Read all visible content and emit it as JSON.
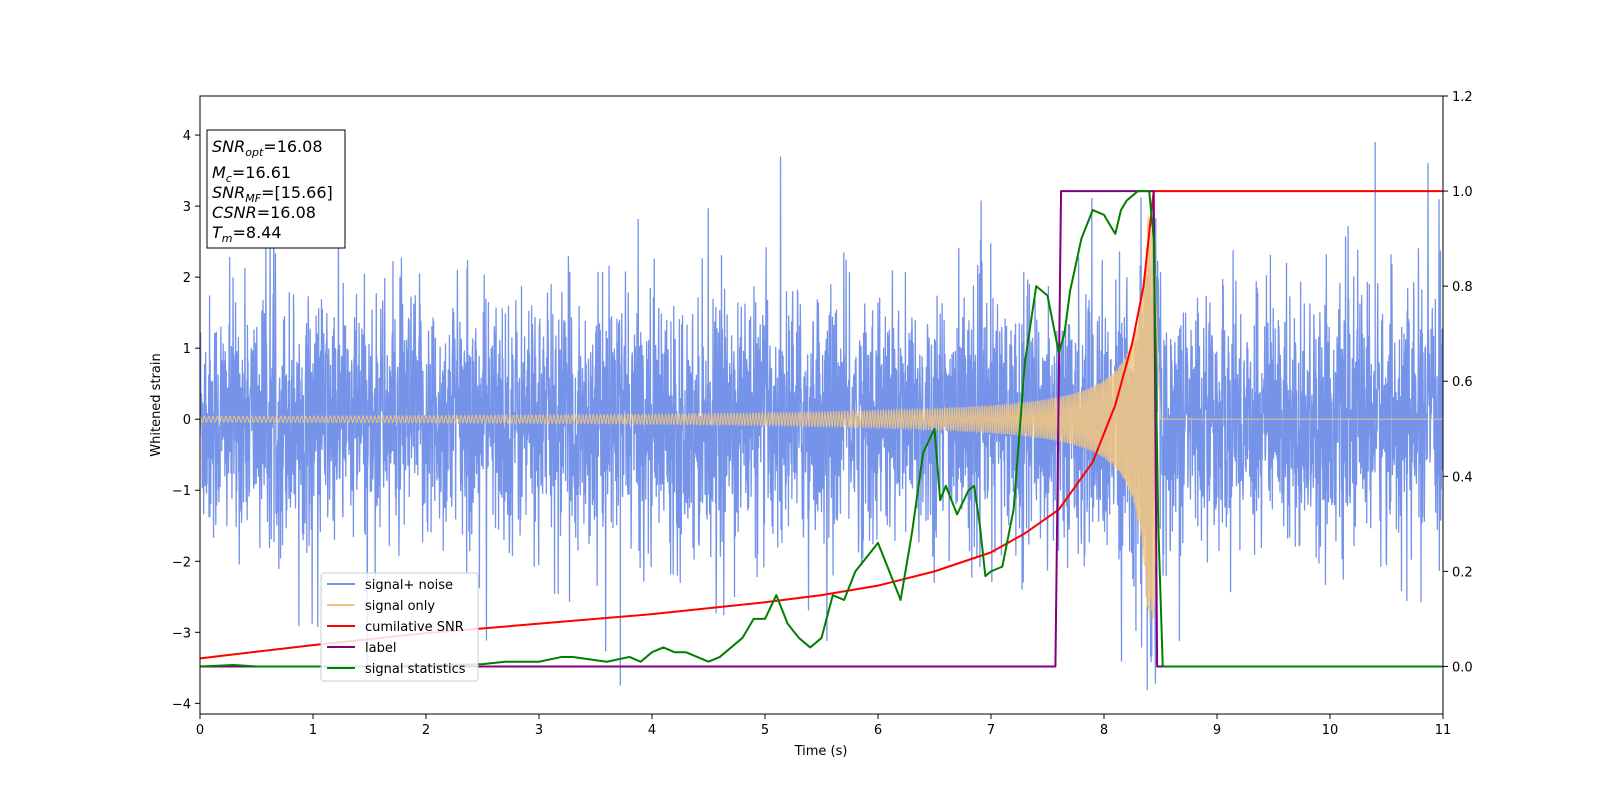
{
  "chart_data": {
    "type": "line",
    "xlabel": "Time (s)",
    "ylabel": "Whitened strain",
    "xlim": [
      0,
      11
    ],
    "ylim_left": [
      -4.15,
      4.55
    ],
    "ylim_right": [
      -0.1,
      1.2
    ],
    "x_ticks": [
      0,
      1,
      2,
      3,
      4,
      5,
      6,
      7,
      8,
      9,
      10,
      11
    ],
    "y_ticks_left": [
      -4,
      -3,
      -2,
      -1,
      0,
      1,
      2,
      3,
      4
    ],
    "y_ticks_right": [
      0.0,
      0.2,
      0.4,
      0.6,
      0.8,
      1.0,
      1.2
    ],
    "x_tick_labels": [
      "0",
      "1",
      "2",
      "3",
      "4",
      "5",
      "6",
      "7",
      "8",
      "9",
      "10",
      "11"
    ],
    "y_tick_labels_left": [
      "−4",
      "−3",
      "−2",
      "−1",
      "0",
      "1",
      "2",
      "3",
      "4"
    ],
    "y_tick_labels_right": [
      "0.0",
      "0.2",
      "0.4",
      "0.6",
      "0.8",
      "1.0",
      "1.2"
    ],
    "legend_position": "lower-left",
    "grid": false,
    "annotation": {
      "snr_opt": {
        "symbol": "SNR",
        "sub": "opt",
        "value": "=16.08"
      },
      "mc": {
        "symbol": "M",
        "sub": "c",
        "value": "=16.61"
      },
      "snr_mf": {
        "symbol": "SNR",
        "sub": "MF",
        "value": "=[15.66]"
      },
      "csnr": {
        "symbol": "CSNR",
        "value": "=16.08"
      },
      "tm": {
        "symbol": "T",
        "sub": "m",
        "value": "=8.44"
      }
    },
    "series": [
      {
        "name": "signal+ noise",
        "axis": "left",
        "color": "#7593e8",
        "description_noise_std": 0.85,
        "amplitude_peaks": [
          3.9,
          -3.75
        ]
      },
      {
        "name": "signal only",
        "axis": "left",
        "color": "#f5c77e",
        "chirp": {
          "t_merge": 8.44,
          "peak_amplitude": 2.9,
          "end": 8.5
        }
      },
      {
        "name": "cumilative SNR",
        "axis": "right",
        "color": "#ff0000",
        "x": [
          0,
          1,
          2,
          3,
          4,
          5,
          5.5,
          6,
          6.5,
          7,
          7.3,
          7.6,
          7.9,
          8.1,
          8.25,
          8.35,
          8.44,
          8.5,
          11
        ],
        "y": [
          0.017,
          0.045,
          0.07,
          0.09,
          0.11,
          0.135,
          0.15,
          0.17,
          0.2,
          0.24,
          0.28,
          0.33,
          0.43,
          0.55,
          0.68,
          0.8,
          1.0,
          1.0,
          1.0
        ]
      },
      {
        "name": "label",
        "axis": "right",
        "color": "#800080",
        "x": [
          0,
          7.57,
          7.62,
          8.44,
          8.47,
          11
        ],
        "y": [
          0.0,
          0.0,
          1.0,
          1.0,
          0.0,
          0.0
        ]
      },
      {
        "name": "signal statistics",
        "axis": "right",
        "color": "#007f00",
        "x": [
          0,
          0.3,
          0.5,
          1.0,
          1.5,
          2.0,
          2.5,
          2.7,
          3.0,
          3.2,
          3.3,
          3.6,
          3.8,
          3.9,
          4.0,
          4.1,
          4.2,
          4.3,
          4.5,
          4.6,
          4.7,
          4.8,
          4.9,
          5.0,
          5.1,
          5.2,
          5.3,
          5.4,
          5.5,
          5.6,
          5.7,
          5.8,
          5.9,
          6.0,
          6.1,
          6.2,
          6.3,
          6.4,
          6.5,
          6.55,
          6.6,
          6.7,
          6.8,
          6.85,
          6.9,
          6.95,
          7.0,
          7.1,
          7.2,
          7.3,
          7.4,
          7.5,
          7.6,
          7.65,
          7.7,
          7.8,
          7.9,
          8.0,
          8.1,
          8.15,
          8.2,
          8.3,
          8.4,
          8.44,
          8.48,
          8.52,
          11
        ],
        "y": [
          0.0,
          0.003,
          0.0,
          0.0,
          0.0,
          0.002,
          0.005,
          0.01,
          0.01,
          0.02,
          0.02,
          0.01,
          0.02,
          0.01,
          0.03,
          0.04,
          0.03,
          0.03,
          0.01,
          0.02,
          0.04,
          0.06,
          0.1,
          0.1,
          0.15,
          0.09,
          0.06,
          0.04,
          0.06,
          0.15,
          0.14,
          0.2,
          0.23,
          0.26,
          0.2,
          0.14,
          0.28,
          0.45,
          0.5,
          0.35,
          0.38,
          0.32,
          0.37,
          0.38,
          0.3,
          0.19,
          0.2,
          0.21,
          0.33,
          0.64,
          0.8,
          0.78,
          0.66,
          0.7,
          0.79,
          0.9,
          0.96,
          0.95,
          0.91,
          0.96,
          0.98,
          1.0,
          1.0,
          0.9,
          0.3,
          0.0,
          0.0
        ]
      }
    ]
  }
}
